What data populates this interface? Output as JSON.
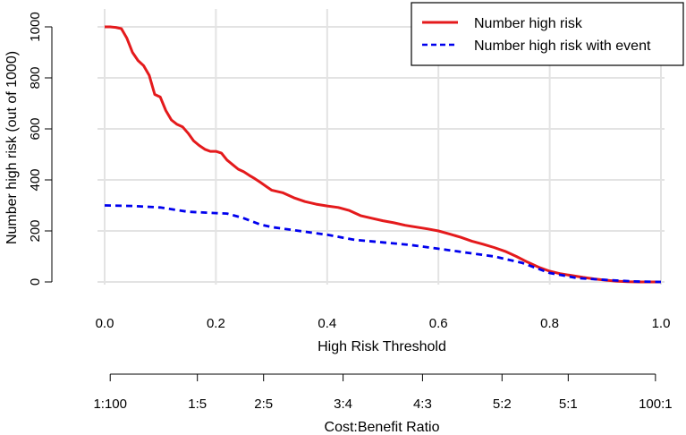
{
  "chart_data": {
    "type": "line",
    "title": "",
    "xlabel": "High Risk Threshold",
    "ylabel": "Number high risk (out of 1000)",
    "xlim": [
      0,
      1
    ],
    "ylim": [
      0,
      1000
    ],
    "x_ticks": [
      0.0,
      0.2,
      0.4,
      0.6,
      0.8,
      1.0
    ],
    "x_tick_labels": [
      "0.0",
      "0.2",
      "0.4",
      "0.6",
      "0.8",
      "1.0"
    ],
    "y_ticks": [
      0,
      200,
      400,
      600,
      800,
      1000
    ],
    "y_tick_labels": [
      "0",
      "200",
      "400",
      "600",
      "800",
      "1000"
    ],
    "grid": true,
    "legend_position": "top-right",
    "series": [
      {
        "name": "Number high risk",
        "color": "#e41a1c",
        "style": "solid",
        "x": [
          0,
          0.01,
          0.02,
          0.03,
          0.04,
          0.05,
          0.06,
          0.07,
          0.08,
          0.09,
          0.1,
          0.11,
          0.12,
          0.13,
          0.14,
          0.15,
          0.16,
          0.17,
          0.18,
          0.19,
          0.2,
          0.21,
          0.22,
          0.23,
          0.24,
          0.25,
          0.26,
          0.27,
          0.28,
          0.29,
          0.3,
          0.32,
          0.34,
          0.36,
          0.38,
          0.4,
          0.42,
          0.44,
          0.46,
          0.48,
          0.5,
          0.52,
          0.54,
          0.56,
          0.58,
          0.6,
          0.62,
          0.64,
          0.66,
          0.68,
          0.7,
          0.72,
          0.74,
          0.76,
          0.78,
          0.8,
          0.82,
          0.84,
          0.86,
          0.88,
          0.9,
          0.92,
          0.94,
          0.96,
          0.98,
          1.0
        ],
        "y": [
          1000,
          1000,
          998,
          993,
          955,
          900,
          868,
          848,
          810,
          735,
          725,
          672,
          635,
          618,
          608,
          583,
          553,
          535,
          520,
          512,
          512,
          505,
          478,
          460,
          442,
          432,
          418,
          405,
          390,
          375,
          360,
          350,
          330,
          315,
          305,
          298,
          292,
          280,
          260,
          250,
          240,
          232,
          222,
          215,
          208,
          200,
          188,
          175,
          160,
          148,
          135,
          120,
          100,
          78,
          58,
          42,
          32,
          25,
          18,
          12,
          7,
          3,
          1,
          0,
          0,
          0
        ]
      },
      {
        "name": "Number high risk with event",
        "color": "#0000ee",
        "style": "dashed",
        "x": [
          0,
          0.05,
          0.1,
          0.15,
          0.2,
          0.22,
          0.25,
          0.28,
          0.3,
          0.35,
          0.4,
          0.45,
          0.5,
          0.55,
          0.6,
          0.65,
          0.7,
          0.75,
          0.8,
          0.85,
          0.9,
          0.95,
          1.0
        ],
        "y": [
          300,
          298,
          292,
          275,
          270,
          268,
          250,
          225,
          215,
          200,
          185,
          165,
          155,
          145,
          130,
          115,
          100,
          75,
          35,
          15,
          8,
          2,
          0
        ]
      }
    ],
    "secondary_axis": {
      "label": "Cost:Benefit Ratio",
      "ticks": [
        0.01,
        0.1667,
        0.2857,
        0.4286,
        0.5714,
        0.7143,
        0.8333,
        0.9901
      ],
      "tick_labels": [
        "1:100",
        "1:5",
        "2:5",
        "3:4",
        "4:3",
        "5:2",
        "5:1",
        "100:1"
      ]
    }
  }
}
